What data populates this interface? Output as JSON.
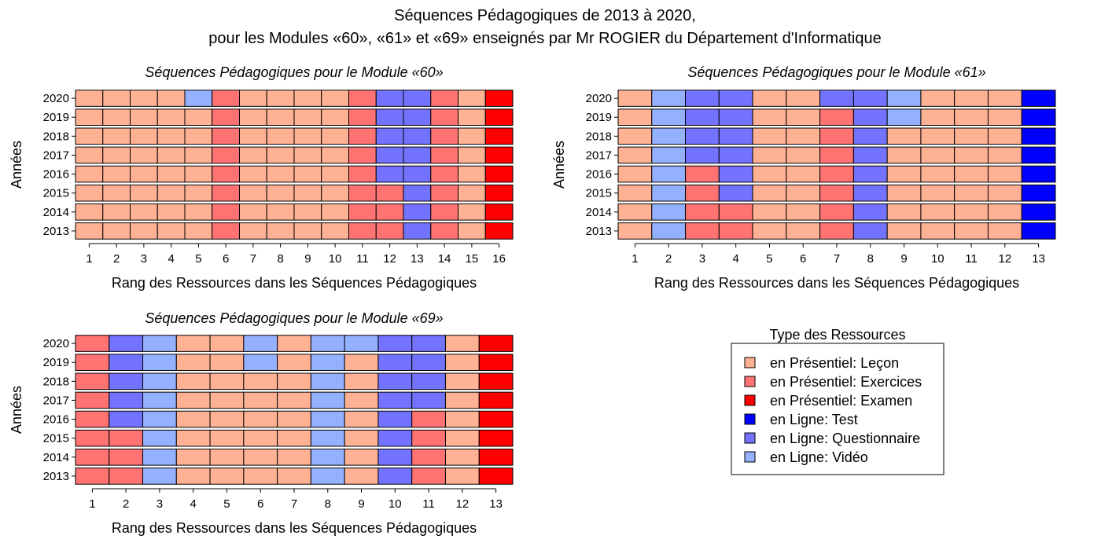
{
  "title_line1": "Séquences Pédagogiques de 2013 à 2020,",
  "title_line2": "pour les Modules «60», «61» et «69» enseignés par Mr ROGIER du Département d'Informatique",
  "legend": {
    "title": "Type des Ressources",
    "items": [
      {
        "code": "L",
        "label": "en Présentiel: Leçon",
        "color": "#FFB194"
      },
      {
        "code": "E",
        "label": "en Présentiel: Exercices",
        "color": "#FF7373"
      },
      {
        "code": "X",
        "label": "en Présentiel: Examen",
        "color": "#FF0000"
      },
      {
        "code": "T",
        "label": "en Ligne: Test",
        "color": "#0000FF"
      },
      {
        "code": "Q",
        "label": "en Ligne: Questionnaire",
        "color": "#7373FF"
      },
      {
        "code": "V",
        "label": "en Ligne: Vidéo",
        "color": "#94B1FF"
      }
    ]
  },
  "chart_data": [
    {
      "type": "heatmap",
      "title": "Séquences Pédagogiques pour le Module «60»",
      "xlabel": "Rang des Ressources dans les Séquences Pédagogiques",
      "ylabel": "Années",
      "x": [
        "1",
        "2",
        "3",
        "4",
        "5",
        "6",
        "7",
        "8",
        "9",
        "10",
        "11",
        "12",
        "13",
        "14",
        "15",
        "16"
      ],
      "years": [
        "2020",
        "2019",
        "2018",
        "2017",
        "2016",
        "2015",
        "2014",
        "2013"
      ],
      "rows": [
        [
          "L",
          "L",
          "L",
          "L",
          "V",
          "E",
          "L",
          "L",
          "L",
          "L",
          "E",
          "Q",
          "Q",
          "E",
          "L",
          "X"
        ],
        [
          "L",
          "L",
          "L",
          "L",
          "L",
          "E",
          "L",
          "L",
          "L",
          "L",
          "E",
          "Q",
          "Q",
          "E",
          "L",
          "X"
        ],
        [
          "L",
          "L",
          "L",
          "L",
          "L",
          "E",
          "L",
          "L",
          "L",
          "L",
          "E",
          "Q",
          "Q",
          "E",
          "L",
          "X"
        ],
        [
          "L",
          "L",
          "L",
          "L",
          "L",
          "E",
          "L",
          "L",
          "L",
          "L",
          "E",
          "Q",
          "Q",
          "E",
          "L",
          "X"
        ],
        [
          "L",
          "L",
          "L",
          "L",
          "L",
          "E",
          "L",
          "L",
          "L",
          "L",
          "E",
          "Q",
          "Q",
          "E",
          "L",
          "X"
        ],
        [
          "L",
          "L",
          "L",
          "L",
          "L",
          "E",
          "L",
          "L",
          "L",
          "L",
          "E",
          "E",
          "Q",
          "E",
          "L",
          "X"
        ],
        [
          "L",
          "L",
          "L",
          "L",
          "L",
          "E",
          "L",
          "L",
          "L",
          "L",
          "E",
          "E",
          "Q",
          "E",
          "L",
          "X"
        ],
        [
          "L",
          "L",
          "L",
          "L",
          "L",
          "E",
          "L",
          "L",
          "L",
          "L",
          "E",
          "E",
          "Q",
          "E",
          "L",
          "X"
        ]
      ]
    },
    {
      "type": "heatmap",
      "title": "Séquences Pédagogiques pour le Module «61»",
      "xlabel": "Rang des Ressources dans les Séquences Pédagogiques",
      "ylabel": "Années",
      "x": [
        "1",
        "2",
        "3",
        "4",
        "5",
        "6",
        "7",
        "8",
        "9",
        "10",
        "11",
        "12",
        "13"
      ],
      "years": [
        "2020",
        "2019",
        "2018",
        "2017",
        "2016",
        "2015",
        "2014",
        "2013"
      ],
      "rows": [
        [
          "L",
          "V",
          "Q",
          "Q",
          "L",
          "L",
          "Q",
          "Q",
          "V",
          "L",
          "L",
          "L",
          "T"
        ],
        [
          "L",
          "V",
          "Q",
          "Q",
          "L",
          "L",
          "E",
          "Q",
          "V",
          "L",
          "L",
          "L",
          "T"
        ],
        [
          "L",
          "V",
          "Q",
          "Q",
          "L",
          "L",
          "E",
          "Q",
          "L",
          "L",
          "L",
          "L",
          "T"
        ],
        [
          "L",
          "V",
          "Q",
          "Q",
          "L",
          "L",
          "E",
          "Q",
          "L",
          "L",
          "L",
          "L",
          "T"
        ],
        [
          "L",
          "V",
          "E",
          "Q",
          "L",
          "L",
          "E",
          "Q",
          "L",
          "L",
          "L",
          "L",
          "T"
        ],
        [
          "L",
          "V",
          "E",
          "Q",
          "L",
          "L",
          "E",
          "Q",
          "L",
          "L",
          "L",
          "L",
          "T"
        ],
        [
          "L",
          "V",
          "E",
          "E",
          "L",
          "L",
          "E",
          "Q",
          "L",
          "L",
          "L",
          "L",
          "T"
        ],
        [
          "L",
          "V",
          "E",
          "E",
          "L",
          "L",
          "E",
          "Q",
          "L",
          "L",
          "L",
          "L",
          "T"
        ]
      ]
    },
    {
      "type": "heatmap",
      "title": "Séquences Pédagogiques pour le Module «69»",
      "xlabel": "Rang des Ressources dans les Séquences Pédagogiques",
      "ylabel": "Années",
      "x": [
        "1",
        "2",
        "3",
        "4",
        "5",
        "6",
        "7",
        "8",
        "9",
        "10",
        "11",
        "12",
        "13"
      ],
      "years": [
        "2020",
        "2019",
        "2018",
        "2017",
        "2016",
        "2015",
        "2014",
        "2013"
      ],
      "rows": [
        [
          "E",
          "Q",
          "V",
          "L",
          "L",
          "V",
          "L",
          "V",
          "V",
          "Q",
          "Q",
          "L",
          "X"
        ],
        [
          "E",
          "Q",
          "V",
          "L",
          "L",
          "V",
          "L",
          "V",
          "L",
          "Q",
          "Q",
          "L",
          "X"
        ],
        [
          "E",
          "Q",
          "V",
          "L",
          "L",
          "L",
          "L",
          "V",
          "L",
          "Q",
          "Q",
          "L",
          "X"
        ],
        [
          "E",
          "Q",
          "V",
          "L",
          "L",
          "L",
          "L",
          "V",
          "L",
          "Q",
          "Q",
          "L",
          "X"
        ],
        [
          "E",
          "Q",
          "V",
          "L",
          "L",
          "L",
          "L",
          "V",
          "L",
          "Q",
          "E",
          "L",
          "X"
        ],
        [
          "E",
          "E",
          "V",
          "L",
          "L",
          "L",
          "L",
          "V",
          "L",
          "Q",
          "E",
          "L",
          "X"
        ],
        [
          "E",
          "E",
          "V",
          "L",
          "L",
          "L",
          "L",
          "V",
          "L",
          "Q",
          "E",
          "L",
          "X"
        ],
        [
          "E",
          "E",
          "V",
          "L",
          "L",
          "L",
          "L",
          "V",
          "L",
          "Q",
          "E",
          "L",
          "X"
        ]
      ]
    }
  ]
}
